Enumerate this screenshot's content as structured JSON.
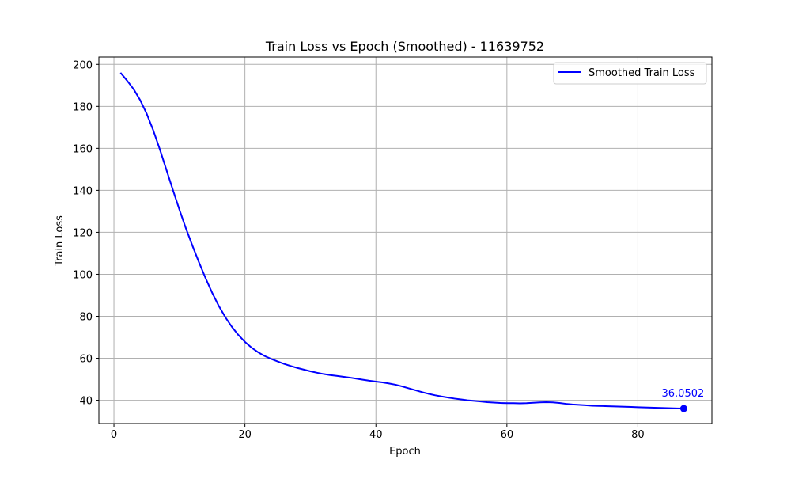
{
  "chart_data": {
    "type": "line",
    "title": "Train Loss vs Epoch (Smoothed) - 11639752",
    "xlabel": "Epoch",
    "ylabel": "Train Loss",
    "xlim": [
      -2.3,
      91.3
    ],
    "ylim": [
      28.9,
      203.5
    ],
    "xticks": [
      0,
      20,
      40,
      60,
      80
    ],
    "yticks": [
      40,
      60,
      80,
      100,
      120,
      140,
      160,
      180,
      200
    ],
    "grid": true,
    "legend_position": "top-right",
    "series": [
      {
        "name": "Smoothed Train Loss",
        "color": "#0000ff",
        "x": [
          1,
          2,
          3,
          4,
          5,
          6,
          7,
          8,
          9,
          10,
          11,
          12,
          13,
          14,
          15,
          16,
          17,
          18,
          19,
          20,
          21,
          22,
          23,
          24,
          25,
          26,
          27,
          28,
          29,
          30,
          31,
          32,
          33,
          34,
          35,
          36,
          37,
          38,
          39,
          40,
          41,
          42,
          43,
          44,
          45,
          46,
          47,
          48,
          49,
          50,
          51,
          52,
          53,
          54,
          55,
          56,
          57,
          58,
          59,
          60,
          61,
          62,
          63,
          64,
          65,
          66,
          67,
          68,
          69,
          70,
          71,
          72,
          73,
          74,
          75,
          76,
          77,
          78,
          79,
          80,
          81,
          82,
          83,
          84,
          85,
          86,
          87
        ],
        "y": [
          196.0,
          192.3,
          188.2,
          183.0,
          176.5,
          168.6,
          159.6,
          149.9,
          140.2,
          130.8,
          121.8,
          113.5,
          105.6,
          98.1,
          91.2,
          85.0,
          79.6,
          75.0,
          71.1,
          67.8,
          65.1,
          62.9,
          61.1,
          59.7,
          58.5,
          57.3,
          56.3,
          55.4,
          54.6,
          53.8,
          53.1,
          52.5,
          52.0,
          51.6,
          51.2,
          50.8,
          50.3,
          49.8,
          49.3,
          48.9,
          48.5,
          48.0,
          47.4,
          46.6,
          45.7,
          44.8,
          43.9,
          43.1,
          42.4,
          41.8,
          41.3,
          40.8,
          40.4,
          40.0,
          39.7,
          39.4,
          39.1,
          38.9,
          38.7,
          38.6,
          38.6,
          38.5,
          38.6,
          38.8,
          39.0,
          39.1,
          39.0,
          38.7,
          38.3,
          38.0,
          37.8,
          37.6,
          37.4,
          37.3,
          37.2,
          37.1,
          37.0,
          36.9,
          36.8,
          36.7,
          36.6,
          36.5,
          36.4,
          36.3,
          36.2,
          36.1,
          36.05
        ]
      }
    ],
    "annotation": {
      "x": 87,
      "y": 36.0502,
      "text": "36.0502",
      "color": "#0000ff"
    }
  }
}
